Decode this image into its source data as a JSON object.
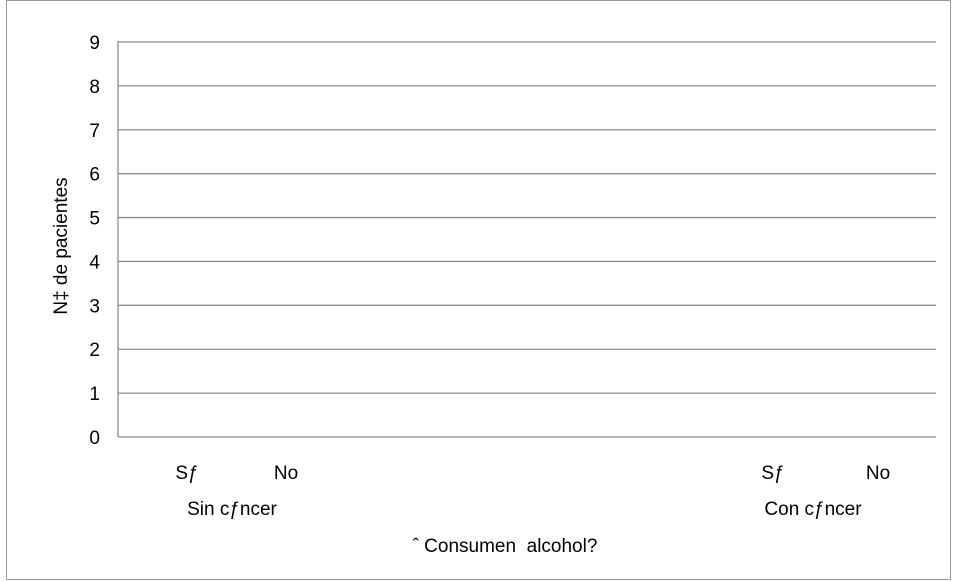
{
  "chart_data": {
    "type": "bar",
    "title": "",
    "xlabel": "ˆ Consumen  alcohol?",
    "ylabel": "N‡ de pacientes",
    "ylim": [
      0,
      9
    ],
    "yticks": [
      "0",
      "1",
      "2",
      "3",
      "4",
      "5",
      "6",
      "7",
      "8",
      "9"
    ],
    "groups": [
      {
        "label": "Sin cƒncer",
        "categories": [
          "Sƒ",
          "No"
        ]
      },
      {
        "label": "Con cƒncer",
        "categories": [
          "Sƒ",
          "No"
        ]
      }
    ],
    "grid": true,
    "legend": "none",
    "colors": {
      "gridline": "#8c8c8c",
      "axis": "#8c8c8c",
      "text": "#000000"
    }
  }
}
